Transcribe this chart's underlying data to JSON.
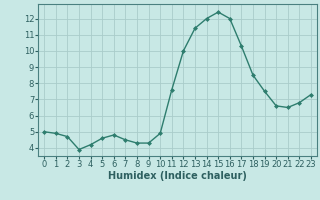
{
  "x": [
    0,
    1,
    2,
    3,
    4,
    5,
    6,
    7,
    8,
    9,
    10,
    11,
    12,
    13,
    14,
    15,
    16,
    17,
    18,
    19,
    20,
    21,
    22,
    23
  ],
  "y": [
    5.0,
    4.9,
    4.7,
    3.9,
    4.2,
    4.6,
    4.8,
    4.5,
    4.3,
    4.3,
    4.9,
    7.6,
    10.0,
    11.4,
    12.0,
    12.4,
    12.0,
    10.3,
    8.5,
    7.5,
    6.6,
    6.5,
    6.8,
    7.3
  ],
  "line_color": "#2e7d6e",
  "marker": "D",
  "marker_size": 2,
  "bg_color": "#c8e8e5",
  "grid_color": "#aaccca",
  "xlabel": "Humidex (Indice chaleur)",
  "xlim": [
    -0.5,
    23.5
  ],
  "ylim": [
    3.5,
    12.9
  ],
  "yticks": [
    4,
    5,
    6,
    7,
    8,
    9,
    10,
    11,
    12
  ],
  "xticks": [
    0,
    1,
    2,
    3,
    4,
    5,
    6,
    7,
    8,
    9,
    10,
    11,
    12,
    13,
    14,
    15,
    16,
    17,
    18,
    19,
    20,
    21,
    22,
    23
  ],
  "xlabel_fontsize": 7,
  "tick_fontsize": 6,
  "linewidth": 1.0,
  "spine_color": "#4a8080",
  "text_color": "#2e6060"
}
